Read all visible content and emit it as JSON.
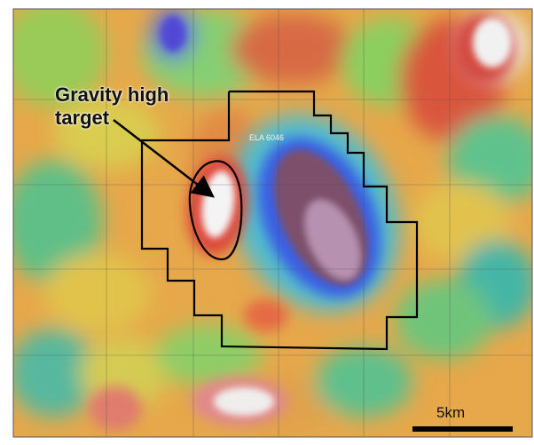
{
  "annotation": {
    "line1": "Gravity high",
    "line2": "target"
  },
  "lease_label": "ELA 6046",
  "scale": {
    "label": "5km"
  },
  "colors": {
    "gravity_high": "#f2f2f2",
    "gravity_mid_high": "#d8483c",
    "gravity_mid": "#e7c84b",
    "gravity_mid_low": "#3fb6a4",
    "gravity_low": "#1f2ce0",
    "gravity_lowest": "#7a4d63",
    "outline": "#000000"
  },
  "icons": [
    "arrow-icon",
    "scale-bar-icon"
  ]
}
